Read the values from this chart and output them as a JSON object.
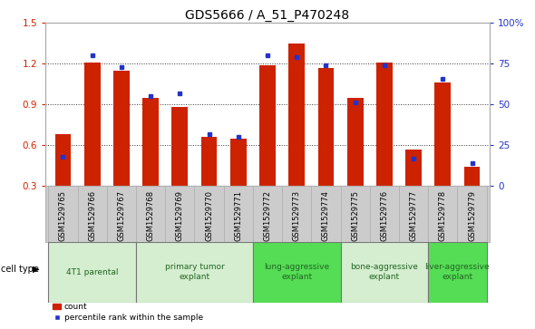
{
  "title": "GDS5666 / A_51_P470248",
  "samples": [
    "GSM1529765",
    "GSM1529766",
    "GSM1529767",
    "GSM1529768",
    "GSM1529769",
    "GSM1529770",
    "GSM1529771",
    "GSM1529772",
    "GSM1529773",
    "GSM1529774",
    "GSM1529775",
    "GSM1529776",
    "GSM1529777",
    "GSM1529778",
    "GSM1529779"
  ],
  "counts": [
    0.68,
    1.21,
    1.15,
    0.95,
    0.88,
    0.66,
    0.65,
    1.19,
    1.35,
    1.17,
    0.95,
    1.21,
    0.57,
    1.06,
    0.44
  ],
  "percentiles": [
    0.18,
    0.8,
    0.73,
    0.55,
    0.57,
    0.32,
    0.3,
    0.8,
    0.79,
    0.74,
    0.51,
    0.74,
    0.17,
    0.66,
    0.14
  ],
  "bar_color": "#cc2200",
  "dot_color": "#2233cc",
  "ylim_left": [
    0.3,
    1.5
  ],
  "ylim_right": [
    0.0,
    1.0
  ],
  "yticks_left": [
    0.3,
    0.6,
    0.9,
    1.2,
    1.5
  ],
  "ytick_labels_left": [
    "0.3",
    "0.6",
    "0.9",
    "1.2",
    "1.5"
  ],
  "yticks_right": [
    0.0,
    0.25,
    0.5,
    0.75,
    1.0
  ],
  "ytick_labels_right": [
    "0",
    "25",
    "50",
    "75",
    "100%"
  ],
  "cell_groups": [
    {
      "label": "4T1 parental",
      "indices": [
        0,
        1,
        2
      ],
      "color": "#d4eecf"
    },
    {
      "label": "primary tumor\nexplant",
      "indices": [
        3,
        4,
        5,
        6
      ],
      "color": "#d4eecf"
    },
    {
      "label": "lung-aggressive\nexplant",
      "indices": [
        7,
        8,
        9
      ],
      "color": "#55dd55"
    },
    {
      "label": "bone-aggressive\nexplant",
      "indices": [
        10,
        11,
        12
      ],
      "color": "#d4eecf"
    },
    {
      "label": "liver-aggressive\nexplant",
      "indices": [
        13,
        14
      ],
      "color": "#55dd55"
    }
  ],
  "cell_type_label": "cell type",
  "legend_count_label": "count",
  "legend_percentile_label": "percentile rank within the sample",
  "bar_width": 0.55,
  "background_color": "#ffffff",
  "plot_bg_color": "#ffffff",
  "grid_color": "#000000",
  "tick_color_left": "#cc2200",
  "tick_color_right": "#2233cc",
  "title_fontsize": 10,
  "axis_fontsize": 7.5,
  "sample_fontsize": 6,
  "label_fontsize": 7,
  "group_label_fontsize": 6.5,
  "sample_row_color": "#cccccc",
  "spine_color": "#aaaaaa"
}
